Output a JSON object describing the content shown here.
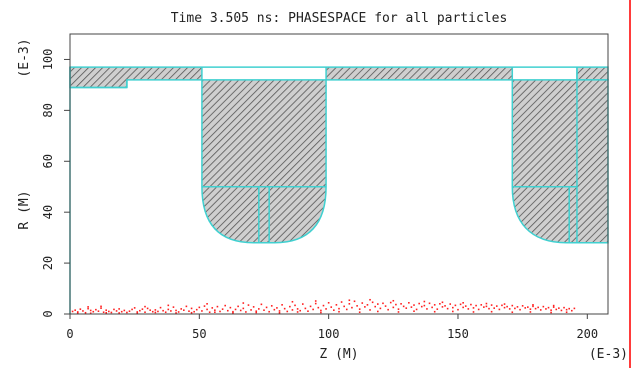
{
  "chart_data": {
    "type": "scatter",
    "title": "Time 3.505 ns:  PHASESPACE for all particles",
    "xlabel": "Z  (M)",
    "ylabel": "R  (M)",
    "x_exponent_label": "(E-3)",
    "y_exponent_label": "(E-3)",
    "xlim": [
      0,
      208
    ],
    "ylim": [
      0,
      110
    ],
    "x_ticks": [
      0,
      50,
      100,
      150,
      200
    ],
    "y_ticks": [
      0,
      20,
      40,
      60,
      80,
      100
    ],
    "grid": false,
    "legend": "none",
    "colors": {
      "particles": "#ff2020",
      "outline": "#40d0d0",
      "hatch": "#555555",
      "hatch_bg": "#cfcfcf",
      "axis": "#444444",
      "right_border": "#ff3b3b"
    },
    "geometry_regions": [
      {
        "name": "top-band",
        "points": [
          [
            0,
            97
          ],
          [
            208,
            97
          ],
          [
            208,
            92
          ],
          [
            196,
            92
          ],
          [
            196,
            97
          ],
          [
            171,
            97
          ],
          [
            171,
            92
          ],
          [
            99,
            92
          ],
          [
            99,
            97
          ],
          [
            51,
            97
          ],
          [
            51,
            92
          ],
          [
            22,
            92
          ],
          [
            22,
            89
          ],
          [
            0,
            89
          ]
        ]
      },
      {
        "name": "cavity-left",
        "path": [
          {
            "cmd": "M",
            "x": 51,
            "y": 92
          },
          {
            "cmd": "L",
            "x": 99,
            "y": 92
          },
          {
            "cmd": "L",
            "x": 99,
            "y": 50
          },
          {
            "cmd": "C",
            "x1": 99,
            "y1": 36,
            "x2": 93,
            "y2": 28,
            "x": 79,
            "y": 28
          },
          {
            "cmd": "L",
            "x": 71,
            "y": 28
          },
          {
            "cmd": "C",
            "x1": 57,
            "y1": 28,
            "x2": 51,
            "y2": 36,
            "x": 51,
            "y": 50
          },
          {
            "cmd": "Z"
          }
        ]
      },
      {
        "name": "cavity-right",
        "path": [
          {
            "cmd": "M",
            "x": 171,
            "y": 92
          },
          {
            "cmd": "L",
            "x": 208,
            "y": 92
          },
          {
            "cmd": "L",
            "x": 208,
            "y": 28
          },
          {
            "cmd": "L",
            "x": 192,
            "y": 28
          },
          {
            "cmd": "C",
            "x1": 178,
            "y1": 28,
            "x2": 171,
            "y2": 36,
            "x": 171,
            "y": 50
          },
          {
            "cmd": "Z"
          }
        ]
      }
    ],
    "outline_segments": [
      [
        [
          0,
          97
        ],
        [
          0,
          0
        ]
      ],
      [
        [
          0,
          89
        ],
        [
          22,
          89
        ]
      ],
      [
        [
          22,
          89
        ],
        [
          22,
          92
        ]
      ],
      [
        [
          51,
          50
        ],
        [
          99,
          50
        ]
      ],
      [
        [
          73,
          50
        ],
        [
          73,
          28
        ]
      ],
      [
        [
          77,
          50
        ],
        [
          77,
          28
        ]
      ],
      [
        [
          171,
          50
        ],
        [
          196,
          50
        ]
      ],
      [
        [
          196,
          97
        ],
        [
          196,
          28
        ]
      ],
      [
        [
          193,
          50
        ],
        [
          193,
          28
        ]
      ]
    ],
    "series": [
      {
        "points": [
          [
            1,
            1.0
          ],
          [
            2,
            1.5
          ],
          [
            3,
            0.8
          ],
          [
            4,
            1.9
          ],
          [
            5,
            1.2
          ],
          [
            6,
            0.5
          ],
          [
            7,
            2.1
          ],
          [
            8,
            1.4
          ],
          [
            9,
            0.9
          ],
          [
            10,
            1.7
          ],
          [
            11,
            1.1
          ],
          [
            12,
            2.3
          ],
          [
            13,
            0.7
          ],
          [
            14,
            1.5
          ],
          [
            15,
            1.0
          ],
          [
            16,
            0.6
          ],
          [
            17,
            1.8
          ],
          [
            18,
            1.2
          ],
          [
            19,
            2.0
          ],
          [
            20,
            0.9
          ],
          [
            21,
            1.4
          ],
          [
            22,
            0.6
          ],
          [
            23,
            1.1
          ],
          [
            24,
            1.8
          ],
          [
            25,
            2.4
          ],
          [
            26,
            0.8
          ],
          [
            27,
            1.3
          ],
          [
            28,
            1.9
          ],
          [
            29,
            0.7
          ],
          [
            30,
            2.2
          ],
          [
            31,
            1.5
          ],
          [
            32,
            0.9
          ],
          [
            33,
            1.6
          ],
          [
            34,
            1.0
          ],
          [
            35,
            2.5
          ],
          [
            36,
            1.3
          ],
          [
            37,
            0.7
          ],
          [
            38,
            1.8
          ],
          [
            39,
            1.2
          ],
          [
            40,
            2.7
          ],
          [
            41,
            1.4
          ],
          [
            42,
            0.8
          ],
          [
            43,
            2.0
          ],
          [
            44,
            1.5
          ],
          [
            45,
            3.0
          ],
          [
            46,
            1.1
          ],
          [
            47,
            2.2
          ],
          [
            48,
            0.9
          ],
          [
            49,
            1.7
          ],
          [
            50,
            2.6
          ],
          [
            51,
            1.2
          ],
          [
            52,
            3.1
          ],
          [
            53,
            1.8
          ],
          [
            54,
            0.7
          ],
          [
            55,
            2.4
          ],
          [
            56,
            1.5
          ],
          [
            57,
            2.9
          ],
          [
            58,
            1.0
          ],
          [
            59,
            1.9
          ],
          [
            60,
            3.3
          ],
          [
            61,
            1.3
          ],
          [
            62,
            2.5
          ],
          [
            63,
            0.9
          ],
          [
            64,
            1.8
          ],
          [
            65,
            3.0
          ],
          [
            66,
            1.4
          ],
          [
            67,
            2.2
          ],
          [
            68,
            0.8
          ],
          [
            69,
            3.5
          ],
          [
            70,
            1.6
          ],
          [
            71,
            2.8
          ],
          [
            72,
            1.1
          ],
          [
            73,
            2.0
          ],
          [
            74,
            3.8
          ],
          [
            75,
            1.5
          ],
          [
            76,
            2.6
          ],
          [
            77,
            0.9
          ],
          [
            78,
            3.2
          ],
          [
            79,
            1.7
          ],
          [
            80,
            2.4
          ],
          [
            81,
            1.2
          ],
          [
            82,
            3.6
          ],
          [
            83,
            2.1
          ],
          [
            84,
            1.0
          ],
          [
            85,
            2.9
          ],
          [
            86,
            1.6
          ],
          [
            87,
            3.4
          ],
          [
            88,
            2.0
          ],
          [
            89,
            1.3
          ],
          [
            90,
            3.9
          ],
          [
            91,
            2.2
          ],
          [
            92,
            1.1
          ],
          [
            93,
            3.0
          ],
          [
            94,
            1.8
          ],
          [
            95,
            4.1
          ],
          [
            96,
            2.5
          ],
          [
            97,
            1.4
          ],
          [
            98,
            3.3
          ],
          [
            99,
            2.0
          ],
          [
            100,
            4.4
          ],
          [
            101,
            2.7
          ],
          [
            102,
            1.5
          ],
          [
            103,
            3.6
          ],
          [
            104,
            2.1
          ],
          [
            105,
            4.7
          ],
          [
            106,
            3.0
          ],
          [
            107,
            1.8
          ],
          [
            108,
            4.0
          ],
          [
            109,
            2.5
          ],
          [
            110,
            5.0
          ],
          [
            111,
            3.2
          ],
          [
            112,
            1.9
          ],
          [
            113,
            4.3
          ],
          [
            114,
            2.8
          ],
          [
            115,
            3.6
          ],
          [
            116,
            1.6
          ],
          [
            117,
            4.6
          ],
          [
            118,
            2.9
          ],
          [
            119,
            3.9
          ],
          [
            120,
            2.2
          ],
          [
            121,
            4.2
          ],
          [
            122,
            3.1
          ],
          [
            123,
            1.7
          ],
          [
            124,
            4.5
          ],
          [
            125,
            2.6
          ],
          [
            126,
            3.7
          ],
          [
            127,
            1.9
          ],
          [
            128,
            4.0
          ],
          [
            129,
            3.0
          ],
          [
            130,
            2.3
          ],
          [
            131,
            4.4
          ],
          [
            132,
            2.7
          ],
          [
            133,
            3.5
          ],
          [
            134,
            1.8
          ],
          [
            135,
            4.1
          ],
          [
            136,
            2.9
          ],
          [
            137,
            3.3
          ],
          [
            138,
            2.0
          ],
          [
            139,
            4.2
          ],
          [
            140,
            2.6
          ],
          [
            141,
            3.6
          ],
          [
            142,
            1.9
          ],
          [
            143,
            4.0
          ],
          [
            144,
            2.8
          ],
          [
            145,
            3.2
          ],
          [
            146,
            2.1
          ],
          [
            147,
            3.9
          ],
          [
            148,
            2.5
          ],
          [
            149,
            3.4
          ],
          [
            150,
            1.7
          ],
          [
            151,
            3.8
          ],
          [
            152,
            2.6
          ],
          [
            153,
            3.1
          ],
          [
            154,
            2.0
          ],
          [
            155,
            3.7
          ],
          [
            156,
            2.4
          ],
          [
            157,
            3.3
          ],
          [
            158,
            1.8
          ],
          [
            159,
            3.6
          ],
          [
            160,
            2.7
          ],
          [
            161,
            3.0
          ],
          [
            162,
            2.1
          ],
          [
            163,
            3.5
          ],
          [
            164,
            2.3
          ],
          [
            165,
            3.1
          ],
          [
            166,
            1.8
          ],
          [
            167,
            3.4
          ],
          [
            168,
            2.5
          ],
          [
            169,
            2.9
          ],
          [
            170,
            2.0
          ],
          [
            171,
            3.3
          ],
          [
            172,
            2.2
          ],
          [
            173,
            2.8
          ],
          [
            174,
            1.7
          ],
          [
            175,
            3.2
          ],
          [
            176,
            2.4
          ],
          [
            177,
            2.7
          ],
          [
            178,
            1.9
          ],
          [
            179,
            3.0
          ],
          [
            180,
            2.1
          ],
          [
            181,
            2.6
          ],
          [
            182,
            1.6
          ],
          [
            183,
            2.9
          ],
          [
            184,
            2.0
          ],
          [
            185,
            2.5
          ],
          [
            186,
            1.5
          ],
          [
            187,
            2.7
          ],
          [
            188,
            1.8
          ],
          [
            189,
            2.3
          ],
          [
            190,
            1.4
          ],
          [
            191,
            2.5
          ],
          [
            192,
            1.7
          ],
          [
            193,
            2.1
          ],
          [
            194,
            1.3
          ],
          [
            195,
            2.2
          ],
          [
            3,
            0.4
          ],
          [
            8,
            0.3
          ],
          [
            14,
            0.5
          ],
          [
            19,
            0.4
          ],
          [
            26,
            0.3
          ],
          [
            33,
            0.6
          ],
          [
            41,
            0.4
          ],
          [
            47,
            0.5
          ],
          [
            56,
            0.7
          ],
          [
            63,
            0.4
          ],
          [
            72,
            0.6
          ],
          [
            81,
            0.5
          ],
          [
            88,
            0.8
          ],
          [
            97,
            0.6
          ],
          [
            104,
            0.9
          ],
          [
            112,
            0.7
          ],
          [
            119,
            1.0
          ],
          [
            127,
            0.8
          ],
          [
            133,
            1.1
          ],
          [
            141,
            0.9
          ],
          [
            148,
            1.0
          ],
          [
            156,
            0.8
          ],
          [
            163,
            0.9
          ],
          [
            171,
            0.7
          ],
          [
            178,
            0.8
          ],
          [
            186,
            0.6
          ],
          [
            192,
            0.7
          ],
          [
            7,
            2.8
          ],
          [
            12,
            3.0
          ],
          [
            29,
            2.9
          ],
          [
            38,
            3.4
          ],
          [
            53,
            4.0
          ],
          [
            67,
            4.3
          ],
          [
            86,
            4.8
          ],
          [
            95,
            5.1
          ],
          [
            108,
            5.4
          ],
          [
            116,
            5.6
          ],
          [
            125,
            5.2
          ],
          [
            137,
            4.9
          ],
          [
            144,
            4.6
          ],
          [
            152,
            4.4
          ],
          [
            161,
            4.1
          ],
          [
            168,
            3.9
          ],
          [
            179,
            3.6
          ],
          [
            187,
            3.3
          ]
        ]
      }
    ]
  }
}
